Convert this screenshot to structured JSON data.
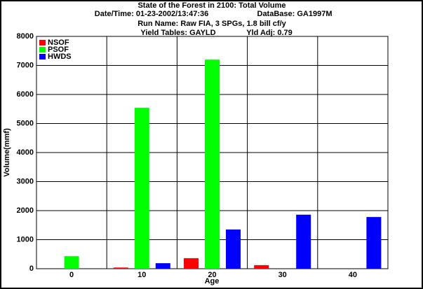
{
  "chart_data": {
    "type": "bar",
    "title": "State of the Forest in 2100: Total Volume",
    "subtitles": [
      "Date/Time: 01-23-2002/13:47:36",
      "DataBase: GA1997M",
      "Run Name: Raw FIA, 3 SPGs, 1.8 bill cf/y",
      "Yield Tables: GAYLD",
      "Yld Adj: 0.79"
    ],
    "x_label": "Age",
    "y_label": "Volume(mmf)",
    "categories": [
      "0",
      "10",
      "20",
      "30",
      "40"
    ],
    "series": [
      {
        "name": "NSOF",
        "color": "#ff0000",
        "values": [
          0,
          40,
          360,
          120,
          0
        ]
      },
      {
        "name": "PSOF",
        "color": "#00ff00",
        "values": [
          430,
          5540,
          7200,
          0,
          0
        ]
      },
      {
        "name": "HWDS",
        "color": "#0000ff",
        "values": [
          0,
          190,
          1350,
          1860,
          1780
        ]
      }
    ],
    "ylim": [
      0,
      8000
    ],
    "yticks": [
      0,
      1000,
      2000,
      3000,
      4000,
      5000,
      6000,
      7000,
      8000
    ],
    "grid": true,
    "legend": "upper-left"
  }
}
